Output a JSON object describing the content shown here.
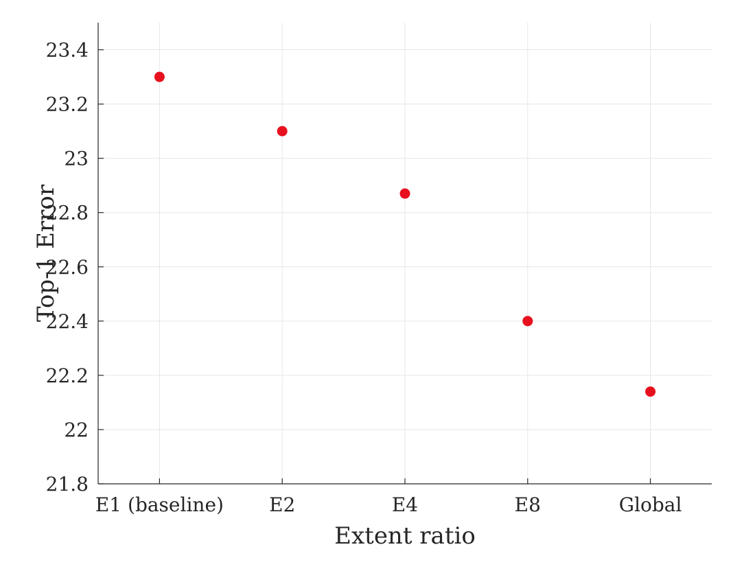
{
  "chart_data": {
    "type": "scatter",
    "title": "",
    "xlabel": "Extent ratio",
    "ylabel": "Top-1 Error",
    "categories": [
      "E1 (baseline)",
      "E2",
      "E4",
      "E8",
      "Global"
    ],
    "series": [
      {
        "values": [
          23.3,
          23.1,
          22.87,
          22.4,
          22.14
        ],
        "color": "#e8101e"
      }
    ],
    "ylim": [
      21.8,
      23.5
    ],
    "yticks": [
      21.8,
      22,
      22.2,
      22.4,
      22.6,
      22.8,
      23,
      23.2,
      23.4
    ],
    "ytick_labels": [
      "21.8",
      "22",
      "22.2",
      "22.4",
      "22.6",
      "22.8",
      "23",
      "23.2",
      "23.4"
    ],
    "grid": true,
    "legend": "none"
  }
}
